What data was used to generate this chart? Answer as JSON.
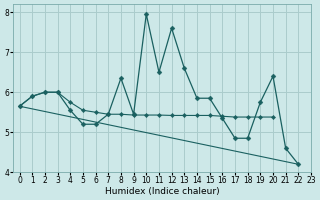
{
  "xlabel": "Humidex (Indice chaleur)",
  "background_color": "#cde8e8",
  "grid_color": "#aacccc",
  "line_color": "#1a6060",
  "xlim": [
    -0.5,
    23
  ],
  "ylim": [
    4,
    8.2
  ],
  "xticks": [
    0,
    1,
    2,
    3,
    4,
    5,
    6,
    7,
    8,
    9,
    10,
    11,
    12,
    13,
    14,
    15,
    16,
    17,
    18,
    19,
    20,
    21,
    22,
    23
  ],
  "yticks": [
    4,
    5,
    6,
    7,
    8
  ],
  "series1_x": [
    0,
    1,
    2,
    3,
    4,
    5,
    6,
    7,
    8,
    9,
    10,
    11,
    12,
    13,
    14,
    15,
    16,
    17,
    18,
    19,
    20,
    21,
    22
  ],
  "series1_y": [
    5.65,
    5.9,
    6.0,
    6.0,
    5.55,
    5.2,
    5.2,
    5.45,
    6.35,
    5.45,
    7.95,
    6.5,
    7.6,
    6.6,
    5.85,
    5.85,
    5.35,
    4.85,
    4.85,
    5.75,
    6.4,
    4.6,
    4.2
  ],
  "series2_x": [
    0,
    1,
    2,
    3,
    4,
    5,
    6,
    7,
    8,
    9,
    10,
    11,
    12,
    13,
    14,
    15,
    16,
    17,
    18,
    19,
    20
  ],
  "series2_y": [
    5.65,
    5.9,
    6.0,
    6.0,
    5.75,
    5.55,
    5.5,
    5.45,
    5.45,
    5.43,
    5.43,
    5.43,
    5.42,
    5.42,
    5.42,
    5.42,
    5.4,
    5.38,
    5.38,
    5.38,
    5.38
  ],
  "series3_x": [
    0,
    22
  ],
  "series3_y": [
    5.65,
    4.2
  ]
}
